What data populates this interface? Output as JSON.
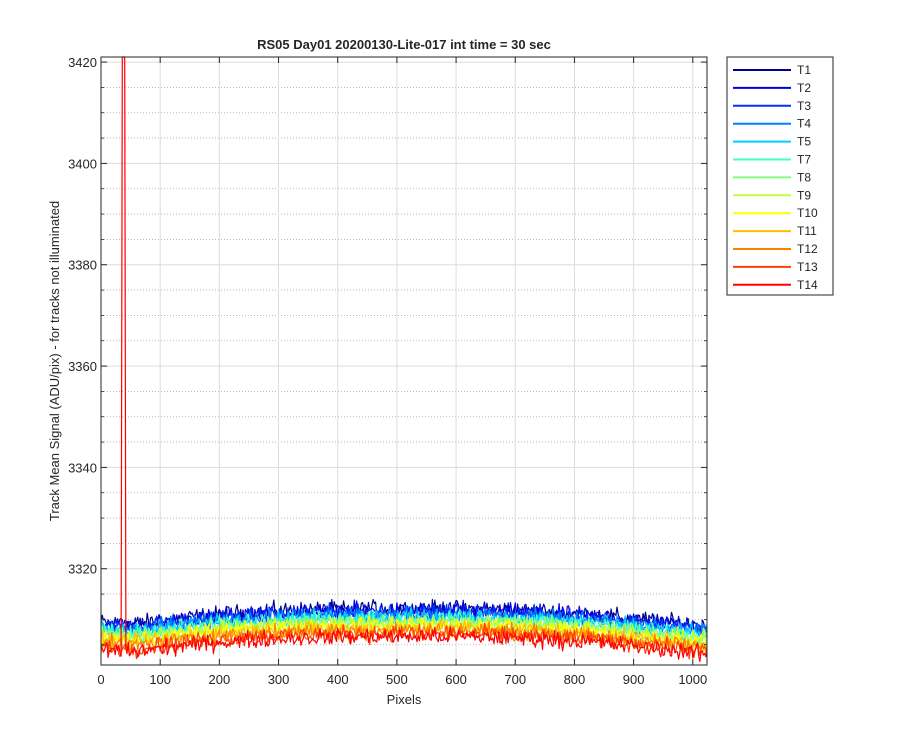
{
  "chart_data": {
    "type": "line",
    "title": "RS05 Day01 20200130-Lite-017 int time = 30 sec",
    "xlabel": "Pixels",
    "ylabel": "Track Mean Signal (ADU/pix) - for tracks not illuminated",
    "xlim": [
      0,
      1024
    ],
    "ylim": [
      3301,
      3421
    ],
    "x_ticks": [
      0,
      100,
      200,
      300,
      400,
      500,
      600,
      700,
      800,
      900,
      1000
    ],
    "y_ticks": [
      3320,
      3340,
      3360,
      3380,
      3400,
      3420
    ],
    "y_minor_step": 5,
    "grid": true,
    "legend_position": "outside-right",
    "spike": {
      "series": "T14",
      "x": [
        36,
        40
      ],
      "y": 3421
    },
    "x": [
      0,
      50,
      100,
      150,
      200,
      250,
      300,
      350,
      400,
      450,
      500,
      550,
      600,
      650,
      700,
      750,
      800,
      850,
      900,
      950,
      1000,
      1024
    ],
    "series": [
      {
        "name": "T1",
        "color": "#00008f",
        "values": [
          3309.5,
          3309.0,
          3309.8,
          3310.4,
          3311.0,
          3311.4,
          3311.7,
          3311.9,
          3312.0,
          3312.1,
          3312.1,
          3312.1,
          3312.1,
          3312.0,
          3311.8,
          3311.6,
          3311.2,
          3310.8,
          3310.2,
          3309.6,
          3309.0,
          3308.6
        ]
      },
      {
        "name": "T2",
        "color": "#0000df",
        "values": [
          3309.2,
          3308.8,
          3309.5,
          3310.1,
          3310.7,
          3311.1,
          3311.4,
          3311.6,
          3311.7,
          3311.8,
          3311.8,
          3311.8,
          3311.8,
          3311.7,
          3311.5,
          3311.3,
          3310.9,
          3310.5,
          3309.9,
          3309.3,
          3308.7,
          3308.3
        ]
      },
      {
        "name": "T3",
        "color": "#0030ff",
        "values": [
          3308.8,
          3308.4,
          3309.1,
          3309.7,
          3310.3,
          3310.7,
          3311.0,
          3311.2,
          3311.3,
          3311.4,
          3311.4,
          3311.4,
          3311.4,
          3311.3,
          3311.1,
          3310.9,
          3310.5,
          3310.1,
          3309.5,
          3308.9,
          3308.3,
          3307.9
        ]
      },
      {
        "name": "T4",
        "color": "#0080ff",
        "values": [
          3308.3,
          3307.9,
          3308.6,
          3309.2,
          3309.8,
          3310.2,
          3310.5,
          3310.7,
          3310.8,
          3310.9,
          3310.9,
          3310.9,
          3310.9,
          3310.8,
          3310.6,
          3310.4,
          3310.0,
          3309.6,
          3309.0,
          3308.4,
          3307.8,
          3307.4
        ]
      },
      {
        "name": "T5",
        "color": "#00cfff",
        "values": [
          3307.9,
          3307.5,
          3308.2,
          3308.8,
          3309.4,
          3309.8,
          3310.1,
          3310.3,
          3310.4,
          3310.5,
          3310.5,
          3310.5,
          3310.5,
          3310.4,
          3310.2,
          3310.0,
          3309.6,
          3309.2,
          3308.6,
          3308.0,
          3307.4,
          3307.0
        ]
      },
      {
        "name": "T7",
        "color": "#40ffbf",
        "values": [
          3307.4,
          3307.0,
          3307.7,
          3308.3,
          3308.9,
          3309.3,
          3309.6,
          3309.8,
          3309.9,
          3310.0,
          3310.0,
          3310.0,
          3310.0,
          3309.9,
          3309.7,
          3309.5,
          3309.1,
          3308.7,
          3308.1,
          3307.5,
          3306.9,
          3306.5
        ]
      },
      {
        "name": "T8",
        "color": "#80ff80",
        "values": [
          3307.0,
          3306.6,
          3307.3,
          3307.9,
          3308.5,
          3308.9,
          3309.2,
          3309.4,
          3309.5,
          3309.6,
          3309.6,
          3309.6,
          3309.6,
          3309.5,
          3309.3,
          3309.1,
          3308.7,
          3308.3,
          3307.7,
          3307.1,
          3306.5,
          3306.1
        ]
      },
      {
        "name": "T9",
        "color": "#bfff40",
        "values": [
          3306.6,
          3306.2,
          3306.9,
          3307.5,
          3308.1,
          3308.5,
          3308.8,
          3309.0,
          3309.1,
          3309.2,
          3309.2,
          3309.2,
          3309.2,
          3309.1,
          3308.9,
          3308.7,
          3308.3,
          3307.9,
          3307.3,
          3306.7,
          3306.1,
          3305.7
        ]
      },
      {
        "name": "T10",
        "color": "#ffff00",
        "values": [
          3306.2,
          3305.8,
          3306.5,
          3307.1,
          3307.7,
          3308.1,
          3308.4,
          3308.6,
          3308.7,
          3308.8,
          3308.8,
          3308.8,
          3308.8,
          3308.7,
          3308.5,
          3308.3,
          3307.9,
          3307.5,
          3306.9,
          3306.3,
          3305.7,
          3305.3
        ]
      },
      {
        "name": "T11",
        "color": "#ffbf00",
        "values": [
          3305.7,
          3305.3,
          3306.0,
          3306.6,
          3307.2,
          3307.6,
          3307.9,
          3308.1,
          3308.2,
          3308.3,
          3308.3,
          3308.3,
          3308.3,
          3308.2,
          3308.0,
          3307.8,
          3307.4,
          3307.0,
          3306.4,
          3305.8,
          3305.2,
          3304.8
        ]
      },
      {
        "name": "T12",
        "color": "#ff8000",
        "values": [
          3305.2,
          3304.8,
          3305.5,
          3306.1,
          3306.7,
          3307.1,
          3307.4,
          3307.6,
          3307.7,
          3307.8,
          3307.8,
          3307.8,
          3307.8,
          3307.7,
          3307.5,
          3307.3,
          3306.9,
          3306.5,
          3305.9,
          3305.3,
          3304.7,
          3304.3
        ]
      },
      {
        "name": "T13",
        "color": "#ff4000",
        "values": [
          3304.6,
          3304.2,
          3304.9,
          3305.5,
          3306.1,
          3306.5,
          3306.8,
          3307.0,
          3307.1,
          3307.2,
          3307.2,
          3307.2,
          3307.2,
          3307.1,
          3306.9,
          3306.7,
          3306.3,
          3305.9,
          3305.3,
          3304.7,
          3304.1,
          3303.7
        ]
      },
      {
        "name": "T14",
        "color": "#ff0000",
        "values": [
          3304.0,
          3303.6,
          3304.3,
          3304.9,
          3305.5,
          3305.9,
          3306.2,
          3306.4,
          3306.5,
          3306.6,
          3306.6,
          3306.6,
          3306.6,
          3306.5,
          3306.3,
          3306.1,
          3305.7,
          3305.3,
          3304.7,
          3304.1,
          3303.5,
          3303.1
        ]
      }
    ]
  }
}
